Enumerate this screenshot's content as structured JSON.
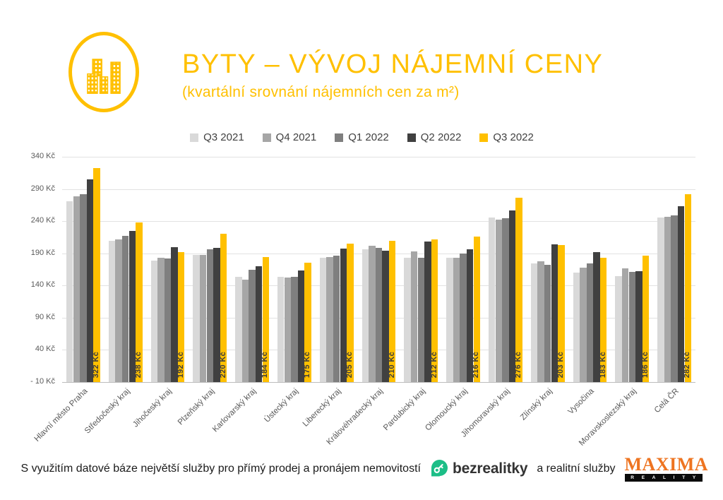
{
  "header": {
    "title": "BYTY – VÝVOJ NÁJEMNÍ CENY",
    "subtitle": "(kvartální srovnání nájemních cen za m²)",
    "accent_color": "#FFC000"
  },
  "chart_data": {
    "type": "bar",
    "title": "BYTY – VÝVOJ NÁJEMNÍ CENY (kvartální srovnání nájemních cen za m²)",
    "xlabel": "",
    "ylabel": "Kč",
    "ylim": [
      -10,
      340
    ],
    "grid": true,
    "legend_position": "top",
    "categories": [
      "Hlavní město Praha",
      "Středočeský kraj",
      "Jihočeský kraj",
      "Plzeňský kraj",
      "Karlovarský kraj",
      "Ústecký kraj",
      "Liberecký kraj",
      "Královéhradecký kraj",
      "Pardubický kraj",
      "Olomoucký kraj",
      "Jihomoravský kraj",
      "Zlínský kraj",
      "Vysočina",
      "Moravskoslezský kraj",
      "Celá ČR"
    ],
    "series": [
      {
        "name": "Q3 2021",
        "color": "#D9D9D9",
        "values": [
          271,
          210,
          179,
          188,
          153,
          153,
          183,
          196,
          183,
          183,
          246,
          174,
          160,
          155,
          246
        ]
      },
      {
        "name": "Q4 2021",
        "color": "#A6A6A6",
        "values": [
          279,
          212,
          183,
          187,
          149,
          152,
          184,
          202,
          193,
          183,
          242,
          178,
          168,
          167,
          247
        ]
      },
      {
        "name": "Q1 2022",
        "color": "#7F7F7F",
        "values": [
          282,
          217,
          182,
          196,
          165,
          153,
          186,
          199,
          183,
          190,
          245,
          172,
          174,
          161,
          249
        ]
      },
      {
        "name": "Q2 2022",
        "color": "#404040",
        "values": [
          305,
          225,
          200,
          198,
          170,
          163,
          197,
          194,
          208,
          196,
          257,
          204,
          192,
          162,
          263
        ]
      },
      {
        "name": "Q3 2022",
        "color": "#FFC000",
        "values": [
          322,
          238,
          192,
          220,
          184,
          175,
          205,
          210,
          212,
          216,
          276,
          203,
          183,
          186,
          282
        ],
        "data_labels": [
          "322 Kč",
          "238 Kč",
          "192 Kč",
          "220 Kč",
          "184 Kč",
          "175 Kč",
          "205 Kč",
          "210 Kč",
          "212 Kč",
          "216 Kč",
          "276 Kč",
          "203 Kč",
          "183 Kč",
          "186 Kč",
          "282 Kč"
        ]
      }
    ],
    "y_ticks": [
      {
        "value": 340,
        "label": "340 Kč"
      },
      {
        "value": 290,
        "label": "290 Kč"
      },
      {
        "value": 240,
        "label": "240 Kč"
      },
      {
        "value": 190,
        "label": "190 Kč"
      },
      {
        "value": 140,
        "label": "140 Kč"
      },
      {
        "value": 90,
        "label": "90 Kč"
      },
      {
        "value": 40,
        "label": "40 Kč"
      },
      {
        "value": -10,
        "label": "- 10 Kč"
      }
    ]
  },
  "footer": {
    "prefix_text": "S využitím datové báze největší služby pro přímý prodej a pronájem nemovitostí",
    "bezrealitky_label": "bezrealitky",
    "bezrealitky_green": "#1CBE87",
    "middle_text": "a realitní služby",
    "maxima_label": "MAXIMA",
    "maxima_sub": "R E A L I T Y",
    "maxima_orange": "#EE7421"
  },
  "icons": {
    "brand": "buildings-icon",
    "bezrealitky": "pin-key-icon"
  }
}
